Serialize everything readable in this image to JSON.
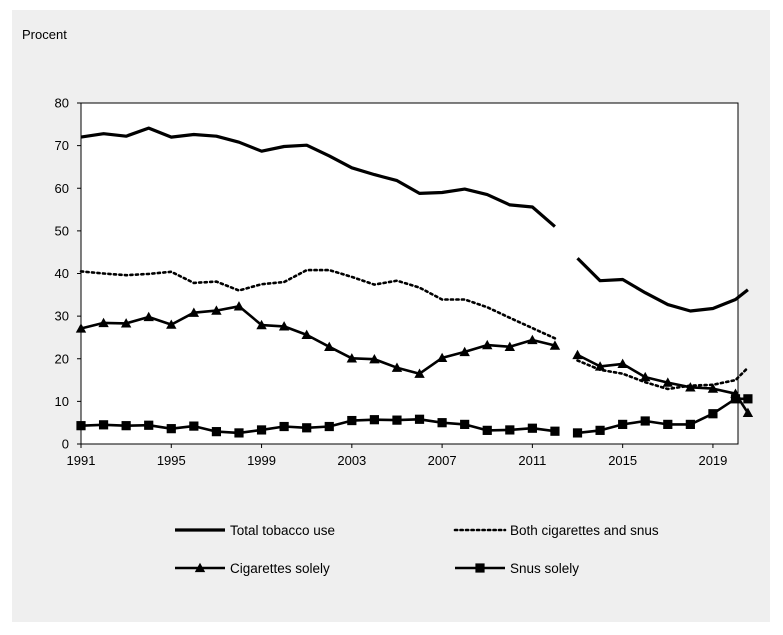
{
  "chart_data": {
    "type": "line",
    "ylabel": "Procent",
    "ylim": [
      0,
      80
    ],
    "yticks": [
      0,
      10,
      20,
      30,
      40,
      50,
      60,
      70,
      80
    ],
    "xlim": [
      1991,
      2020
    ],
    "xticks": [
      1991,
      1995,
      1999,
      2003,
      2007,
      2011,
      2015,
      2019
    ],
    "x": [
      1991,
      1992,
      1993,
      1994,
      1995,
      1996,
      1997,
      1998,
      1999,
      2000,
      2001,
      2002,
      2003,
      2004,
      2005,
      2006,
      2007,
      2008,
      2009,
      2010,
      2011,
      2012,
      2013,
      2014,
      2015,
      2016,
      2017,
      2018,
      2019,
      2020
    ],
    "break_after": 2012,
    "grid": false,
    "legend_position": "bottom",
    "series": [
      {
        "name": "Total tobacco use",
        "style": "solid-thick",
        "color": "#000000",
        "values": [
          72,
          72.8,
          72.2,
          74.1,
          72,
          72.6,
          72.2,
          70.8,
          68.7,
          69.8,
          70.1,
          67.6,
          64.8,
          63.2,
          61.8,
          58.8,
          59,
          59.8,
          58.5,
          56.1,
          55.6,
          51,
          43.6,
          38.3,
          38.6,
          35.5,
          32.7,
          31.2,
          31.8,
          33.9
        ]
      },
      {
        "name": "Both cigarettes and snus",
        "style": "dotted",
        "color": "#000000",
        "values": [
          40.5,
          40,
          39.6,
          39.9,
          40.4,
          37.8,
          38.1,
          36,
          37.5,
          38,
          40.8,
          40.8,
          39.2,
          37.4,
          38.3,
          36.7,
          33.9,
          33.9,
          32.1,
          29.6,
          27.2,
          24.8,
          19.6,
          17.4,
          16.5,
          14.5,
          12.9,
          13.7,
          13.9,
          15
        ]
      },
      {
        "name": "Cigarettes solely",
        "style": "solid-triangle",
        "color": "#000000",
        "values": [
          27.1,
          28.4,
          28.3,
          29.8,
          28,
          30.8,
          31.3,
          32.3,
          27.9,
          27.6,
          25.6,
          22.8,
          20.1,
          19.9,
          17.9,
          16.5,
          20.2,
          21.6,
          23.2,
          22.8,
          24.4,
          23.1,
          20.9,
          18.2,
          18.8,
          15.7,
          14.4,
          13.3,
          13,
          11.8
        ]
      },
      {
        "name": "Snus solely",
        "style": "solid-square",
        "color": "#000000",
        "values": [
          4.3,
          4.5,
          4.3,
          4.4,
          3.6,
          4.2,
          2.9,
          2.6,
          3.3,
          4.1,
          3.8,
          4.1,
          5.5,
          5.7,
          5.6,
          5.8,
          5,
          4.6,
          3.2,
          3.3,
          3.7,
          3,
          2.6,
          3.2,
          4.6,
          5.4,
          4.6,
          4.6,
          7.1,
          10.6
        ]
      }
    ],
    "extra_points": {
      "Total tobacco use": [
        2020.55,
        36.2
      ],
      "Both cigarettes and snus": [
        2020.55,
        17.9
      ],
      "Cigarettes solely": [
        2020.55,
        7.3
      ],
      "Snus solely": [
        2020.55,
        10.6
      ]
    }
  }
}
